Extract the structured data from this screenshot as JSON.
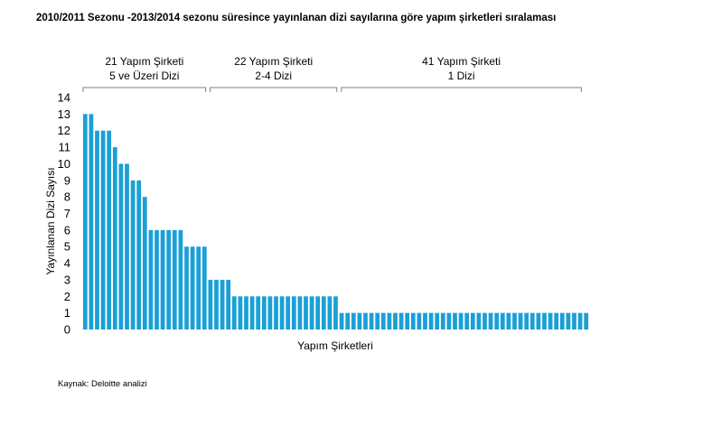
{
  "title": "2010/2011 Sezonu -2013/2014 sezonu süresince yayınlanan dizi sayılarına göre yapım şirketleri sıralaması",
  "source": "Kaynak: Deloitte analizi",
  "chart_data": {
    "type": "bar",
    "title": "2010/2011 Sezonu -2013/2014 sezonu süresince yayınlanan dizi sayılarına göre yapım şirketleri sıralaması",
    "xlabel": "Yapım Şirketleri",
    "ylabel": "Yayınlanan Dizi Sayısı",
    "ylim": [
      0,
      14
    ],
    "yticks": [
      0,
      1,
      2,
      3,
      4,
      5,
      6,
      7,
      8,
      9,
      10,
      11,
      12,
      13,
      14
    ],
    "grid": false,
    "bar_color": "#1aa0d6",
    "values": [
      13,
      13,
      12,
      12,
      12,
      11,
      10,
      10,
      9,
      9,
      8,
      6,
      6,
      6,
      6,
      6,
      6,
      5,
      5,
      5,
      5,
      3,
      3,
      3,
      3,
      2,
      2,
      2,
      2,
      2,
      2,
      2,
      2,
      2,
      2,
      2,
      2,
      2,
      2,
      2,
      2,
      2,
      2,
      1,
      1,
      1,
      1,
      1,
      1,
      1,
      1,
      1,
      1,
      1,
      1,
      1,
      1,
      1,
      1,
      1,
      1,
      1,
      1,
      1,
      1,
      1,
      1,
      1,
      1,
      1,
      1,
      1,
      1,
      1,
      1,
      1,
      1,
      1,
      1,
      1,
      1,
      1,
      1,
      1,
      1
    ],
    "groups": [
      {
        "line1": "21 Yapım Şirketi",
        "line2": "5 ve Üzeri  Dizi",
        "count": 21
      },
      {
        "line1": "22 Yapım Şirketi",
        "line2": "2-4  Dizi",
        "count": 22
      },
      {
        "line1": "41 Yapım Şirketi",
        "line2": "1 Dizi",
        "count": 41
      }
    ]
  }
}
